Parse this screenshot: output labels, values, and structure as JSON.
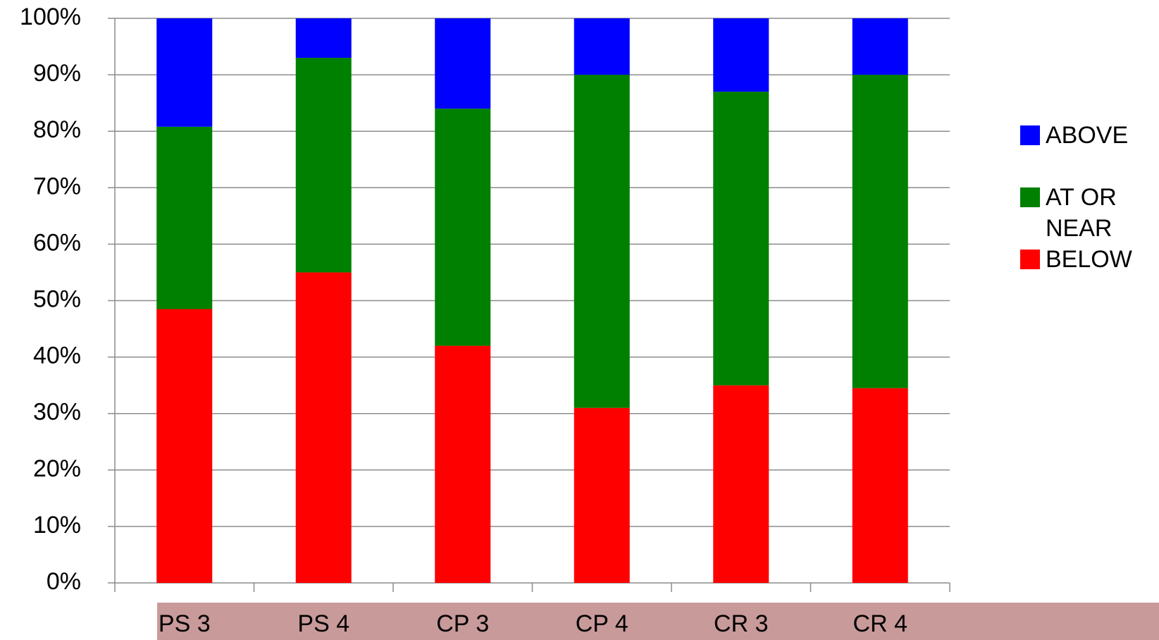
{
  "chart_data": {
    "type": "stacked_bar",
    "categories": [
      "PS 3",
      "PS 4",
      "CP 3",
      "CP 4",
      "CR 3",
      "CR 4"
    ],
    "series": [
      {
        "name": "BELOW",
        "color": "#ff0000",
        "values": [
          48.5,
          55,
          42,
          31,
          35,
          34.5
        ]
      },
      {
        "name": "AT OR NEAR",
        "color": "#008000",
        "values": [
          32.3,
          38,
          42,
          59,
          52,
          55.5
        ]
      },
      {
        "name": "ABOVE",
        "color": "#0000ff",
        "values": [
          19.2,
          7,
          16,
          10,
          13,
          10
        ]
      }
    ],
    "ylim": [
      0,
      100
    ],
    "yticks": [
      {
        "value": 0,
        "label": "0%"
      },
      {
        "value": 10,
        "label": "10%"
      },
      {
        "value": 20,
        "label": "20%"
      },
      {
        "value": 30,
        "label": "30%"
      },
      {
        "value": 40,
        "label": "40%"
      },
      {
        "value": 50,
        "label": "50%"
      },
      {
        "value": 60,
        "label": "60%"
      },
      {
        "value": 70,
        "label": "70%"
      },
      {
        "value": 80,
        "label": "80%"
      },
      {
        "value": 90,
        "label": "90%"
      },
      {
        "value": 100,
        "label": "100%"
      }
    ],
    "grid": true,
    "legend": "right"
  }
}
